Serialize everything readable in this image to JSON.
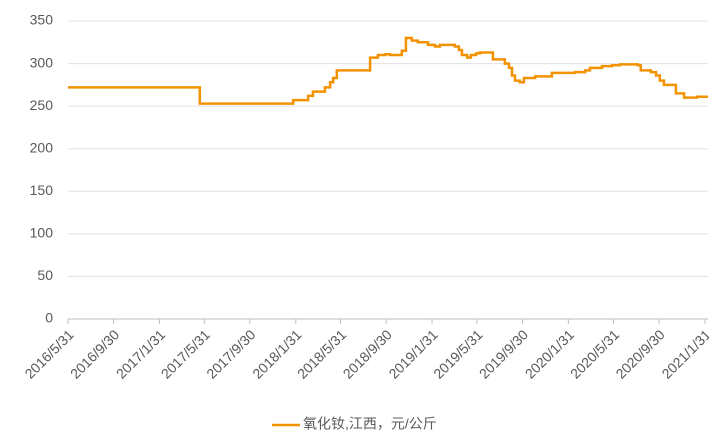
{
  "chart_data": {
    "type": "line",
    "drawstyle": "steps-post",
    "grid": true,
    "legend": "bottom",
    "x": [
      "2016/5/31",
      "2017/5/19",
      "2018/1/24",
      "2018/3/5",
      "2018/3/18",
      "2018/4/19",
      "2018/5/3",
      "2018/5/11",
      "2018/5/21",
      "2018/8/18",
      "2018/9/8",
      "2018/9/27",
      "2018/10/10",
      "2018/11/11",
      "2018/11/22",
      "2018/12/8",
      "2018/12/24",
      "2019/1/20",
      "2019/2/8",
      "2019/2/21",
      "2019/4/2",
      "2019/4/13",
      "2019/4/21",
      "2019/5/5",
      "2019/5/15",
      "2019/5/29",
      "2019/6/8",
      "2019/7/13",
      "2019/8/14",
      "2019/8/25",
      "2019/9/2",
      "2019/9/10",
      "2019/9/23",
      "2019/10/4",
      "2019/11/3",
      "2019/12/18",
      "2020/2/18",
      "2020/3/16",
      "2020/3/29",
      "2020/4/30",
      "2020/5/27",
      "2020/6/17",
      "2020/8/4",
      "2020/8/12",
      "2020/9/8",
      "2020/9/22",
      "2020/10/2",
      "2020/10/13",
      "2020/11/14",
      "2020/12/6",
      "2021/1/9"
    ],
    "series": [
      {
        "name": "氧化钕,江西，元/公斤",
        "color": "#f39200",
        "values": [
          272,
          253,
          257,
          262,
          267,
          272,
          278,
          283,
          292,
          307,
          310,
          311,
          310,
          315,
          330,
          327,
          325,
          322,
          320,
          322,
          320,
          316,
          310,
          307,
          310,
          312,
          313,
          305,
          300,
          295,
          286,
          280,
          278,
          283,
          285,
          289,
          290,
          292,
          295,
          297,
          298,
          299,
          298,
          292,
          290,
          286,
          280,
          275,
          265,
          260,
          261
        ]
      }
    ],
    "xlim": [
      "2016/5/31",
      "2021/2/8"
    ],
    "xticks": [
      "2016/5/31",
      "2016/9/30",
      "2017/1/31",
      "2017/5/31",
      "2017/9/30",
      "2018/1/31",
      "2018/5/31",
      "2018/9/30",
      "2019/1/31",
      "2019/5/31",
      "2019/9/30",
      "2020/1/31",
      "2020/5/31",
      "2020/9/30",
      "2021/1/31"
    ],
    "ylim": [
      0,
      350
    ],
    "yticks": [
      0,
      50,
      100,
      150,
      200,
      250,
      300,
      350
    ]
  }
}
